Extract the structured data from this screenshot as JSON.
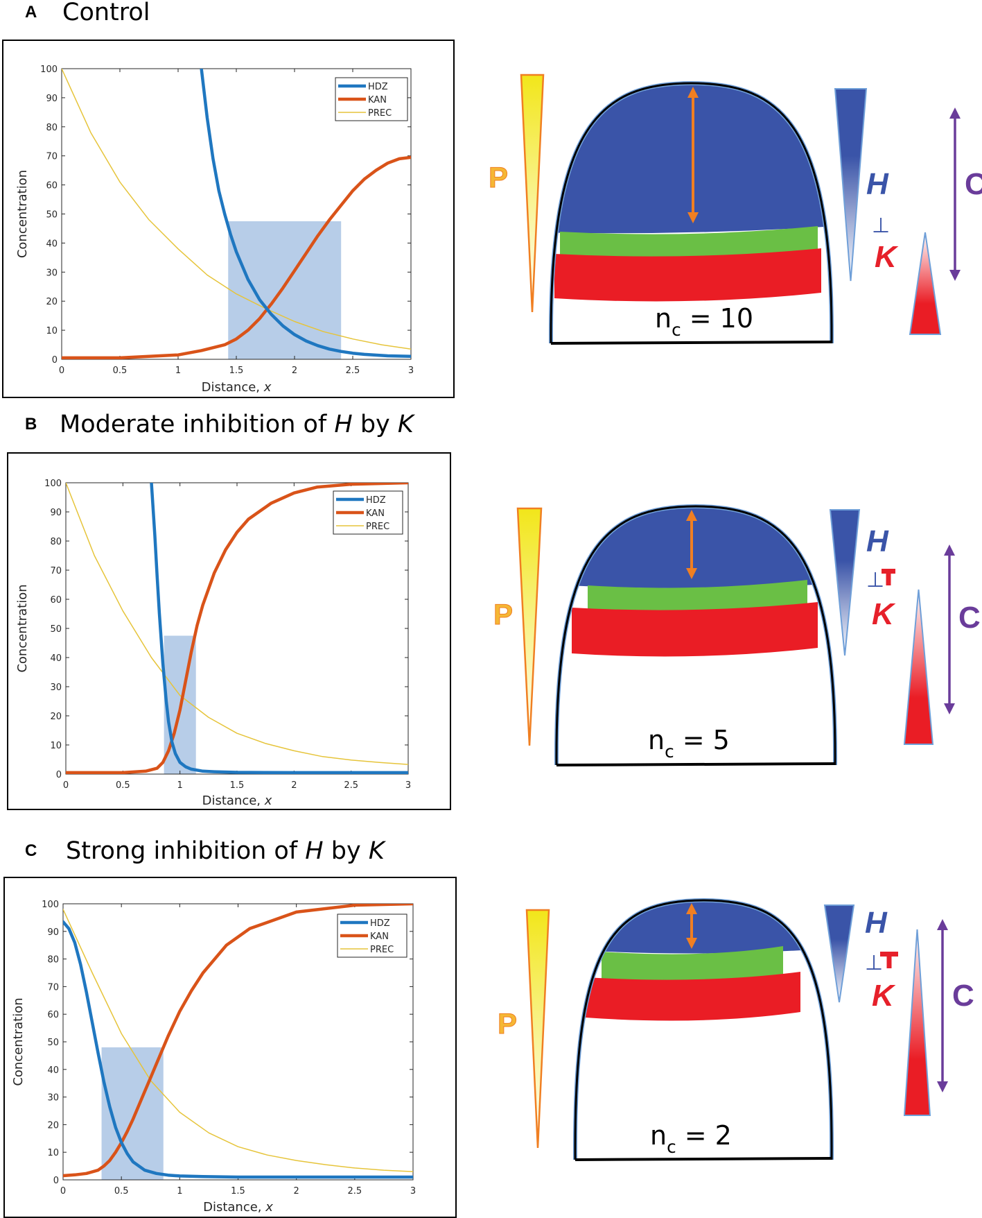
{
  "panels": [
    {
      "letter": "A",
      "title_parts": [
        "Control"
      ],
      "chart_data": {
        "type": "line",
        "xlabel": "Distance, x",
        "ylabel": "Concentration",
        "xlim": [
          0,
          3
        ],
        "ylim": [
          0,
          100
        ],
        "xticks": [
          0,
          0.5,
          1,
          1.5,
          2,
          2.5,
          3
        ],
        "xtick_labels": [
          "0",
          "0.5",
          "1",
          "1.5",
          "2",
          "2.5",
          "3"
        ],
        "yticks": [
          0,
          10,
          20,
          30,
          40,
          50,
          60,
          70,
          80,
          90,
          100
        ],
        "ytick_labels": [
          "0",
          "10",
          "20",
          "30",
          "40",
          "50",
          "60",
          "70",
          "80",
          "90",
          "100"
        ],
        "shaded_region": {
          "x": [
            1.43,
            2.4
          ],
          "y": [
            0,
            47.5
          ],
          "color": "#b7cde8"
        },
        "series": [
          {
            "name": "HDZ",
            "color": "#1f77c0",
            "x": [
              1.2,
              1.25,
              1.3,
              1.35,
              1.4,
              1.45,
              1.5,
              1.6,
              1.7,
              1.8,
              1.9,
              2.0,
              2.1,
              2.2,
              2.3,
              2.4,
              2.5,
              2.6,
              2.8,
              3.0
            ],
            "y": [
              100,
              83,
              69,
              58,
              50,
              43,
              37,
              27.5,
              20.5,
              15.5,
              11.5,
              8.5,
              6.3,
              4.7,
              3.5,
              2.7,
              2.1,
              1.7,
              1.2,
              1.0
            ]
          },
          {
            "name": "KAN",
            "color": "#d95319",
            "x": [
              0,
              0.5,
              1.0,
              1.2,
              1.4,
              1.5,
              1.6,
              1.7,
              1.8,
              1.9,
              2.0,
              2.1,
              2.2,
              2.3,
              2.4,
              2.5,
              2.6,
              2.7,
              2.8,
              2.9,
              3.0
            ],
            "y": [
              0.5,
              0.5,
              1.5,
              3,
              5,
              7,
              10,
              14,
              19,
              24.5,
              30.5,
              36.5,
              42.5,
              48,
              53,
              58,
              62,
              65,
              67.5,
              69,
              69.5
            ]
          },
          {
            "name": "PREC",
            "color": "#e6c43a",
            "x": [
              0,
              0.25,
              0.5,
              0.75,
              1.0,
              1.25,
              1.5,
              1.75,
              2.0,
              2.25,
              2.5,
              2.75,
              3.0
            ],
            "y": [
              100,
              78,
              61,
              48,
              38,
              29,
              22.5,
              17.5,
              13,
              9.5,
              7,
              5,
              3.5
            ]
          }
        ]
      },
      "diagram": {
        "nc_label": "n",
        "nc_sub": "c",
        "nc_value": "= 10",
        "p_label": "P",
        "h_label": "H",
        "inhib_symbol": "⊥",
        "k_label": "K",
        "c_label": "C"
      }
    },
    {
      "letter": "B",
      "title_parts": [
        "Moderate inhibition of ",
        "H",
        " by ",
        "K"
      ],
      "chart_data": {
        "type": "line",
        "xlabel": "Distance, x",
        "ylabel": "Concentration",
        "xlim": [
          0,
          3
        ],
        "ylim": [
          0,
          100
        ],
        "xticks": [
          0,
          0.5,
          1,
          1.5,
          2,
          2.5,
          3
        ],
        "xtick_labels": [
          "0",
          "0.5",
          "1",
          "1.5",
          "2",
          "2.5",
          "3"
        ],
        "yticks": [
          0,
          10,
          20,
          30,
          40,
          50,
          60,
          70,
          80,
          90,
          100
        ],
        "ytick_labels": [
          "0",
          "10",
          "20",
          "30",
          "40",
          "50",
          "60",
          "70",
          "80",
          "90",
          "100"
        ],
        "shaded_region": {
          "x": [
            0.86,
            1.14
          ],
          "y": [
            0,
            47.5
          ],
          "color": "#b7cde8"
        },
        "series": [
          {
            "name": "HDZ",
            "color": "#1f77c0",
            "x": [
              0.75,
              0.78,
              0.8,
              0.82,
              0.85,
              0.88,
              0.9,
              0.93,
              0.96,
              1.0,
              1.05,
              1.1,
              1.2,
              1.3,
              1.5,
              2.0,
              3.0
            ],
            "y": [
              100,
              82,
              68,
              55,
              38,
              25,
              18,
              11,
              7,
              4,
              2.5,
              1.7,
              1.0,
              0.8,
              0.6,
              0.5,
              0.5
            ]
          },
          {
            "name": "KAN",
            "color": "#d95319",
            "x": [
              0,
              0.5,
              0.7,
              0.8,
              0.85,
              0.9,
              0.95,
              1.0,
              1.05,
              1.1,
              1.15,
              1.2,
              1.3,
              1.4,
              1.5,
              1.6,
              1.8,
              2.0,
              2.2,
              2.5,
              3.0
            ],
            "y": [
              0.5,
              0.5,
              1,
              2,
              4,
              8,
              14,
              22,
              32,
              42,
              51,
              58,
              69,
              77,
              83,
              87.5,
              93,
              96.5,
              98.5,
              99.5,
              100
            ]
          },
          {
            "name": "PREC",
            "color": "#e6c43a",
            "x": [
              0,
              0.25,
              0.5,
              0.75,
              1.0,
              1.25,
              1.5,
              1.75,
              2.0,
              2.25,
              2.5,
              2.75,
              3.0
            ],
            "y": [
              100,
              75,
              56,
              40,
              27,
              19.5,
              14,
              10.5,
              8,
              6,
              4.8,
              4,
              3.3
            ]
          }
        ]
      },
      "diagram": {
        "nc_label": "n",
        "nc_sub": "c",
        "nc_value": "= 5",
        "p_label": "P",
        "h_label": "H",
        "inhib_symbol": "⊥",
        "k_label": "K",
        "c_label": "C"
      }
    },
    {
      "letter": "C",
      "title_parts": [
        "Strong inhibition of ",
        "H",
        " by ",
        "K"
      ],
      "chart_data": {
        "type": "line",
        "xlabel": "Distance, x",
        "ylabel": "Concentration",
        "xlim": [
          0,
          3
        ],
        "ylim": [
          0,
          100
        ],
        "xticks": [
          0,
          0.5,
          1,
          1.5,
          2,
          2.5,
          3
        ],
        "xtick_labels": [
          "0",
          "0.5",
          "1",
          "1.5",
          "2",
          "2.5",
          "3"
        ],
        "yticks": [
          0,
          10,
          20,
          30,
          40,
          50,
          60,
          70,
          80,
          90,
          100
        ],
        "ytick_labels": [
          "0",
          "10",
          "20",
          "30",
          "40",
          "50",
          "60",
          "70",
          "80",
          "90",
          "100"
        ],
        "shaded_region": {
          "x": [
            0.33,
            0.86
          ],
          "y": [
            0,
            48
          ],
          "color": "#b7cde8"
        },
        "series": [
          {
            "name": "HDZ",
            "color": "#1f77c0",
            "x": [
              0,
              0.05,
              0.1,
              0.15,
              0.2,
              0.25,
              0.3,
              0.35,
              0.4,
              0.45,
              0.5,
              0.55,
              0.6,
              0.7,
              0.8,
              0.9,
              1.0,
              1.2,
              1.5,
              2.0,
              3.0
            ],
            "y": [
              93.5,
              91,
              86,
              78,
              68,
              57,
              46,
              35.5,
              26.5,
              19,
              13.5,
              9.5,
              6.5,
              3.5,
              2.3,
              1.7,
              1.4,
              1.2,
              1.0,
              1.0,
              1.0
            ]
          },
          {
            "name": "KAN",
            "color": "#d95319",
            "x": [
              0,
              0.1,
              0.2,
              0.3,
              0.35,
              0.4,
              0.45,
              0.5,
              0.55,
              0.6,
              0.65,
              0.7,
              0.75,
              0.8,
              0.85,
              0.9,
              1.0,
              1.1,
              1.2,
              1.4,
              1.6,
              2.0,
              2.5,
              3.0
            ],
            "y": [
              1.5,
              1.8,
              2.3,
              3.5,
              5,
              7,
              10,
              13.5,
              17.5,
              22,
              27,
              32,
              37,
              42,
              47,
              52,
              61,
              68.5,
              75,
              85,
              91,
              97,
              99.5,
              100
            ]
          },
          {
            "name": "PREC",
            "color": "#e6c43a",
            "x": [
              0,
              0.25,
              0.5,
              0.75,
              1.0,
              1.25,
              1.5,
              1.75,
              2.0,
              2.25,
              2.5,
              2.75,
              3.0
            ],
            "y": [
              98,
              75,
              53,
              36,
              24.5,
              17,
              12,
              9,
              7,
              5.5,
              4.3,
              3.5,
              3
            ]
          }
        ]
      },
      "diagram": {
        "nc_label": "n",
        "nc_sub": "c",
        "nc_value": "= 2",
        "p_label": "P",
        "h_label": "H",
        "inhib_symbol": "⊥",
        "k_label": "K",
        "c_label": "C"
      }
    }
  ],
  "colors": {
    "hdz": "#1f77c0",
    "kan": "#d95319",
    "prec": "#e6c43a",
    "shade": "#b7cde8",
    "blue_zone": "#3a54a8",
    "green_zone": "#6abf45",
    "red_zone": "#ea1d25",
    "p_label": "#f5b735",
    "h_label": "#3a54a8",
    "k_label": "#e6202a",
    "c_label": "#6a3c9a",
    "arrow_orange": "#f07f22"
  }
}
